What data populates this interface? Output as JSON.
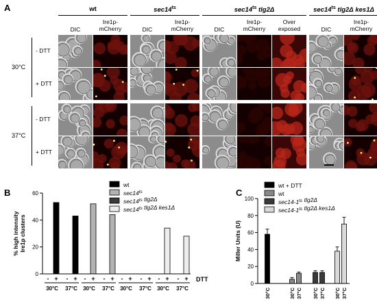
{
  "panel_a": {
    "letter": "A",
    "groups": [
      {
        "title": "wt",
        "cols": [
          "DIC",
          "Ire1p-\nmCherry"
        ]
      },
      {
        "title": "sec14ts",
        "cols": [
          "DIC",
          "Ire1p-\nmCherry"
        ]
      },
      {
        "title": "sec14ts tlg2Δ",
        "cols": [
          "DIC",
          "Ire1p-\nmCherry",
          "Over\nexposed"
        ]
      },
      {
        "title": "sec14ts tlg2Δ kes1Δ",
        "cols": [
          "DIC",
          "Ire1p-\nmCherry"
        ]
      }
    ],
    "temps": [
      "30°C",
      "37°C"
    ],
    "conditions": [
      "- DTT",
      "+ DTT",
      "- DTT",
      "+ DTT"
    ]
  },
  "chart_data": [
    {
      "panel": "B",
      "type": "bar",
      "ylabel": "% high intensity\nIre1p clusters",
      "ylim": [
        0,
        60
      ],
      "yticks": [
        0,
        20,
        40,
        60
      ],
      "dtt_label": "DTT",
      "legend": [
        {
          "name": "wt",
          "color": "#000000"
        },
        {
          "name": "sec14ts",
          "color": "#b3b3b3"
        },
        {
          "name": "sec14ts tlg2Δ",
          "color": "#3a3a3a"
        },
        {
          "name": "sec14ts tlg2Δ kes1Δ",
          "color": "#ededed"
        }
      ],
      "groups": [
        {
          "color": "#000000",
          "temps": [
            "30°C",
            "37°C"
          ],
          "dtt": [
            "-",
            "+",
            "-",
            "+"
          ],
          "values": [
            0,
            53,
            0,
            43
          ]
        },
        {
          "color": "#b3b3b3",
          "temps": [
            "30°C",
            "37°C"
          ],
          "dtt": [
            "-",
            "+",
            "-",
            "+"
          ],
          "values": [
            0,
            52,
            0,
            44
          ]
        },
        {
          "color": "#3a3a3a",
          "temps": [
            "30°C",
            "37°C"
          ],
          "dtt": [
            "-",
            "+",
            "-",
            "+"
          ],
          "values": [
            0,
            0,
            0,
            0
          ]
        },
        {
          "color": "#ededed",
          "temps": [
            "30°C",
            "37°C"
          ],
          "dtt": [
            "-",
            "+",
            "-",
            "+"
          ],
          "values": [
            0,
            34,
            0,
            28
          ]
        }
      ]
    },
    {
      "panel": "C",
      "type": "bar",
      "ylabel": "Miller Units (U)",
      "ylim": [
        0,
        100
      ],
      "yticks": [
        0,
        20,
        40,
        60,
        80,
        100
      ],
      "legend": [
        {
          "name": "wt + DTT",
          "color": "#000000"
        },
        {
          "name": "wt",
          "color": "#888888"
        },
        {
          "name": "sec14-1ts tlg2Δ",
          "color": "#3a3a3a"
        },
        {
          "name": "sec14-1ts tlg2Δ kes1Δ",
          "color": "#d9d9d9"
        }
      ],
      "groups": [
        {
          "color": "#000000",
          "temps": [
            "30°C"
          ],
          "values": [
            58
          ],
          "errors": [
            6
          ]
        },
        {
          "color": "#888888",
          "temps": [
            "30°C",
            "37°C"
          ],
          "values": [
            5,
            12
          ],
          "errors": [
            2,
            1.5
          ]
        },
        {
          "color": "#3a3a3a",
          "temps": [
            "30°C",
            "37°C"
          ],
          "values": [
            13,
            13
          ],
          "errors": [
            2,
            2
          ]
        },
        {
          "color": "#d9d9d9",
          "temps": [
            "30°C",
            "37°C"
          ],
          "values": [
            38,
            70
          ],
          "errors": [
            5,
            8
          ]
        }
      ]
    }
  ]
}
